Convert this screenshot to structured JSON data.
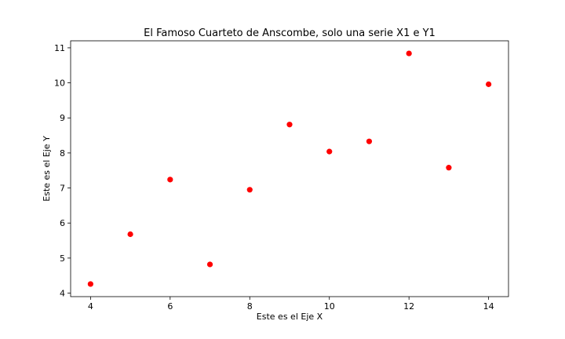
{
  "chart_data": {
    "type": "scatter",
    "title": "El Famoso Cuarteto de Anscombe, solo una serie X1 e Y1",
    "xlabel": "Este es el Eje X",
    "ylabel": "Este es el Eje Y",
    "xlim": [
      3.5,
      14.5
    ],
    "ylim": [
      3.9,
      11.2
    ],
    "xticks": [
      4,
      6,
      8,
      10,
      12,
      14
    ],
    "yticks": [
      4,
      5,
      6,
      7,
      8,
      9,
      10,
      11
    ],
    "grid": false,
    "color": "#ff0000",
    "series": [
      {
        "x": [
          10,
          8,
          13,
          9,
          11,
          14,
          6,
          4,
          12,
          7,
          5
        ],
        "y": [
          8.04,
          6.95,
          7.58,
          8.81,
          8.33,
          9.96,
          7.24,
          4.26,
          10.84,
          4.82,
          5.68
        ]
      }
    ]
  }
}
